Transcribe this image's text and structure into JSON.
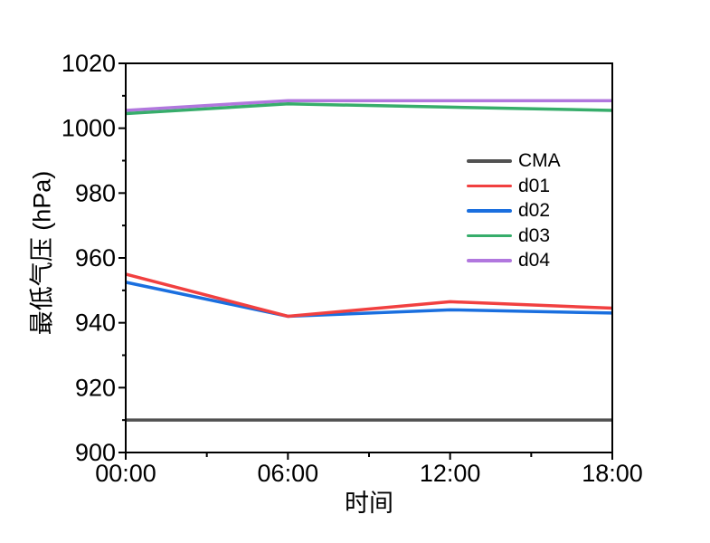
{
  "figure": {
    "background": "#ffffff",
    "axis_color": "#000000",
    "text_color": "#000000"
  },
  "chart_data": {
    "type": "line",
    "title": "",
    "xlabel": "时间",
    "ylabel": "最低气压 (hPa)",
    "x_tick_labels": [
      "00:00",
      "06:00",
      "12:00",
      "18:00"
    ],
    "x_hours": [
      0,
      6,
      12,
      18
    ],
    "x_minor_hours": [
      3,
      9,
      15
    ],
    "xlim_hours": [
      0,
      18
    ],
    "ylim": [
      900,
      1020
    ],
    "y_major_ticks": [
      900,
      920,
      940,
      960,
      980,
      1000,
      1020
    ],
    "y_minor_ticks": [
      910,
      930,
      950,
      970,
      990,
      1010
    ],
    "grid": false,
    "legend_position": "inside-upper-right",
    "units": "hPa",
    "series": [
      {
        "name": "CMA",
        "color": "#515151",
        "values": [
          910,
          910,
          910,
          910
        ]
      },
      {
        "name": "d01",
        "color": "#F14040",
        "values": [
          955,
          942,
          946.5,
          944.5
        ]
      },
      {
        "name": "d02",
        "color": "#1A6FDF",
        "values": [
          952.5,
          942,
          944,
          943
        ]
      },
      {
        "name": "d03",
        "color": "#37AD6B",
        "values": [
          1004.5,
          1007.5,
          1006.5,
          1005.5
        ]
      },
      {
        "name": "d04",
        "color": "#B177DE",
        "values": [
          1005.5,
          1008.5,
          1008.5,
          1008.5
        ]
      }
    ]
  }
}
